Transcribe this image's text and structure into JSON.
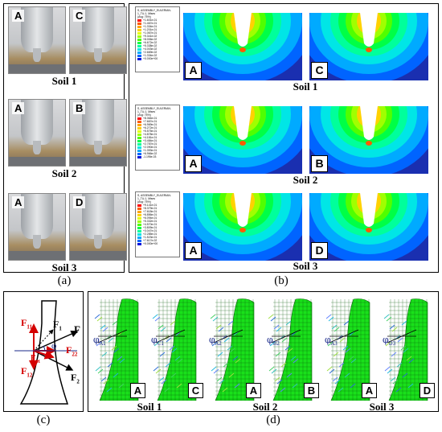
{
  "panels": {
    "a": {
      "label": "(a)",
      "photos": [
        {
          "letter": "A"
        },
        {
          "letter": "C"
        },
        {
          "letter": "A"
        },
        {
          "letter": "B"
        },
        {
          "letter": "A"
        },
        {
          "letter": "D"
        }
      ],
      "soils": [
        "Soil 1",
        "Soil 2",
        "Soil 3"
      ]
    },
    "b": {
      "label": "(b)",
      "legend_titles": [
        "S, ASSEMBLY_EULERIAN-1_TU-1, Mises",
        "S, ASSEMBLY_EULERIAN-1_TU-1, Mises",
        "S, ASSEMBLY_EULERIAN-1_TU-1, Mises"
      ],
      "legend_avg": "(Avg: 75%)",
      "legend_values": [
        [
          "+1.601e-01",
          "+1.467e-01",
          "+1.334e-01",
          "+1.201e-01",
          "+1.067e-01",
          "+9.341e-02",
          "+8.006e-02",
          "+6.672e-02",
          "+5.338e-02",
          "+4.003e-02",
          "+2.669e-02",
          "+1.334e-02",
          "+0.000e+00"
        ],
        [
          "+8.364e-01",
          "+7.667e-01",
          "+6.969e-01",
          "+6.272e-01",
          "+5.575e-01",
          "+4.878e-01",
          "+4.181e-01",
          "+3.484e-01",
          "+2.787e-01",
          "+2.090e-01",
          "+1.393e-01",
          "+6.966e-02",
          "-1.195e-03"
        ],
        [
          "+9.141e-01",
          "+8.379e-01",
          "+7.618e-01",
          "+6.856e-01",
          "+6.094e-01",
          "+5.332e-01",
          "+4.570e-01",
          "+3.809e-01",
          "+3.047e-01",
          "+2.285e-01",
          "+1.523e-01",
          "+7.617e-02",
          "+0.000e+00"
        ]
      ],
      "images": [
        {
          "letter": "A"
        },
        {
          "letter": "C"
        },
        {
          "letter": "A"
        },
        {
          "letter": "B"
        },
        {
          "letter": "A"
        },
        {
          "letter": "D"
        }
      ],
      "soils": [
        "Soil 1",
        "Soil 2",
        "Soil 3"
      ]
    },
    "c": {
      "label": "(c)",
      "forces": {
        "F": "F",
        "F1": "F",
        "F1_sub": "1",
        "F2": "F",
        "F2_sub": "2",
        "F11": "F",
        "F11_sub": "11",
        "F12": "F",
        "F12_sub": "12",
        "F21": "F",
        "F21_sub": "21",
        "F22": "F",
        "F22_sub": "22",
        "phi": "φ"
      }
    },
    "d": {
      "label": "(d)",
      "vectors": [
        {
          "letter": "A",
          "phi": "φ",
          "sub": "A1"
        },
        {
          "letter": "C",
          "phi": "φ",
          "sub": "C1"
        },
        {
          "letter": "A",
          "phi": "φ",
          "sub": "A2"
        },
        {
          "letter": "B",
          "phi": "φ",
          "sub": "B2"
        },
        {
          "letter": "A",
          "phi": "φ",
          "sub": "A3"
        },
        {
          "letter": "D",
          "phi": "φ",
          "sub": "D3"
        }
      ],
      "soils": [
        "Soil 1",
        "Soil 2",
        "Soil 3"
      ]
    }
  },
  "colors": {
    "fem_scale": [
      "#ff0000",
      "#ff5a00",
      "#ffa500",
      "#ffd200",
      "#e6ff00",
      "#a0ff00",
      "#50ff00",
      "#00ff46",
      "#00ff9b",
      "#00e6e6",
      "#00aaff",
      "#0064ff",
      "#0014dc"
    ],
    "mesh_green": "#19e01a",
    "force_red": "#d40000",
    "force_black": "#000000",
    "phi_blue": "#1a2a8a"
  }
}
